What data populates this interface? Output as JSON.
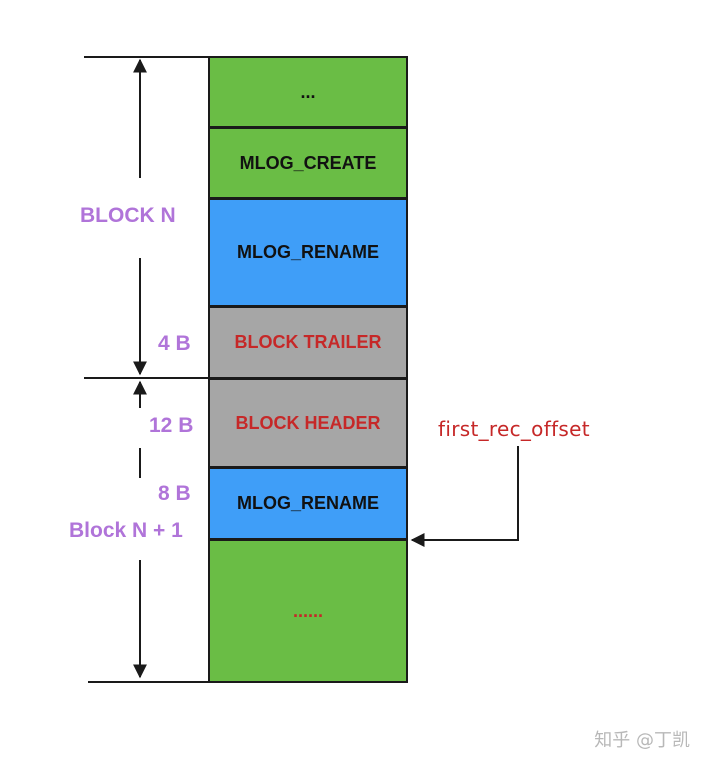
{
  "colors": {
    "green": "#6abd45",
    "blue": "#3f9ef8",
    "gray": "#a6a6a6",
    "purple": "#b074d9",
    "red_text": "#c62828",
    "black_text": "#111111"
  },
  "blocks": [
    {
      "label": "...",
      "fill": "green",
      "text_color": "black"
    },
    {
      "label": "MLOG_CREATE",
      "fill": "green",
      "text_color": "black"
    },
    {
      "label": "MLOG_RENAME",
      "fill": "blue",
      "text_color": "black"
    },
    {
      "label": "BLOCK TRAILER",
      "fill": "gray",
      "text_color": "red"
    },
    {
      "label": "BLOCK HEADER",
      "fill": "gray",
      "text_color": "red"
    },
    {
      "label": "MLOG_RENAME",
      "fill": "blue",
      "text_color": "black"
    },
    {
      "label": "......",
      "fill": "green",
      "text_color": "red"
    }
  ],
  "labels": {
    "block_n": "BLOCK N",
    "trailer_size": "4 B",
    "header_size": "12 B",
    "offset_size": "8 B",
    "block_n1": "Block N + 1",
    "first_rec_offset": "first_rec_offset"
  },
  "watermark": "知乎 @丁凯"
}
